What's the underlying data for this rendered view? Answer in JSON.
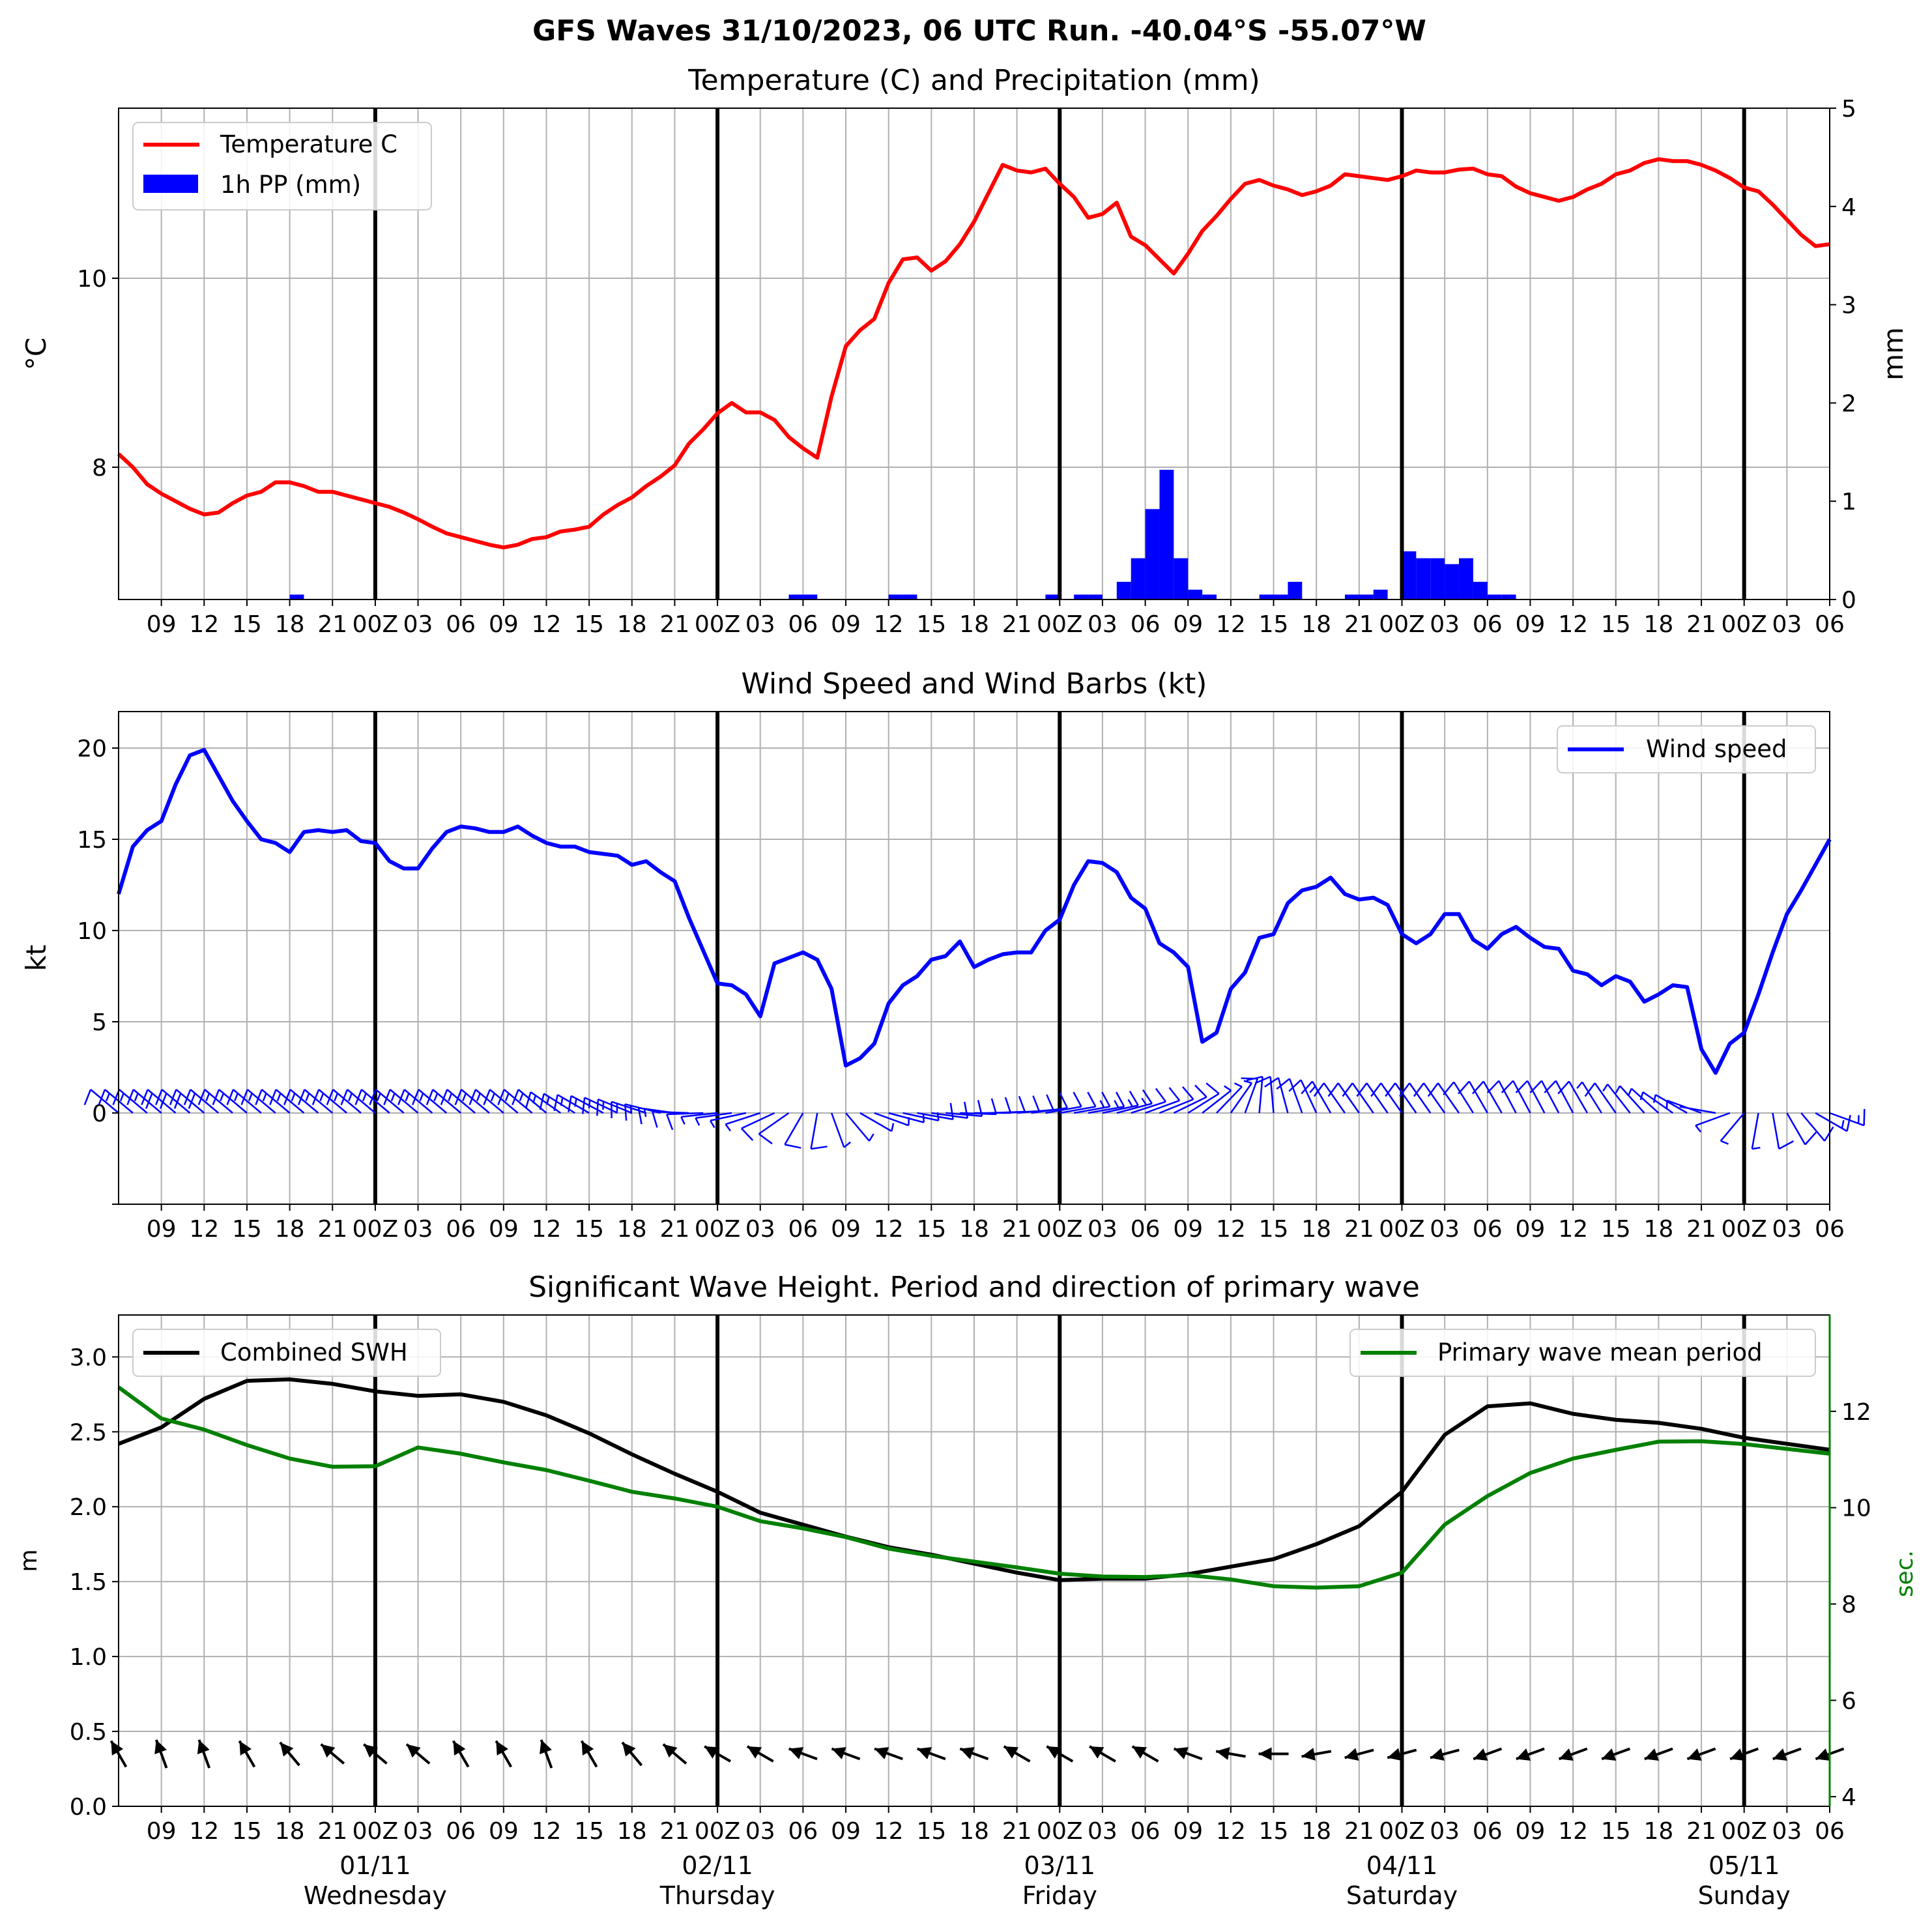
{
  "figure_title": "GFS Waves 31/10/2023, 06 UTC Run. -40.04°S -55.07°W",
  "x_tick_labels": [
    "09",
    "12",
    "15",
    "18",
    "21",
    "00Z",
    "03",
    "06",
    "09",
    "12",
    "15",
    "18",
    "21",
    "00Z",
    "03",
    "06",
    "09",
    "12",
    "15",
    "18",
    "21",
    "00Z",
    "03",
    "06",
    "09",
    "12",
    "15",
    "18",
    "21",
    "00Z",
    "03",
    "06",
    "09",
    "12",
    "15",
    "18",
    "21",
    "00Z",
    "03",
    "06"
  ],
  "chart_data": [
    {
      "type": "line",
      "title": "Temperature (C) and Precipitation (mm)",
      "ylabel": "$^\\circ$C",
      "ylabel_text": "°C",
      "y2label": "mm",
      "ylim": [
        6.6,
        11.8
      ],
      "y2lim": [
        0,
        5
      ],
      "yticks": [
        8,
        10
      ],
      "y2ticks": [
        0,
        1,
        2,
        3,
        4,
        5
      ],
      "x_hours": [
        0,
        120
      ],
      "legend": "upper left",
      "grid": true,
      "series": [
        {
          "name": "Temperature C",
          "color": "#ff0000",
          "x": [
            0,
            1,
            2,
            3,
            4,
            5,
            6,
            7,
            8,
            9,
            10,
            11,
            12,
            13,
            14,
            15,
            16,
            17,
            18,
            19,
            20,
            21,
            22,
            23,
            24,
            25,
            26,
            27,
            28,
            29,
            30,
            31,
            32,
            33,
            34,
            35,
            36,
            37,
            38,
            39,
            40,
            41,
            42,
            43,
            44,
            45,
            46,
            47,
            48,
            49,
            50,
            51,
            52,
            53,
            54,
            55,
            56,
            57,
            58,
            59,
            60,
            61,
            62,
            63,
            64,
            65,
            66,
            67,
            68,
            69,
            70,
            71,
            72,
            73,
            74,
            75,
            76,
            77,
            78,
            79,
            80,
            81,
            82,
            83,
            84,
            85,
            86,
            87,
            88,
            89,
            90,
            91,
            92,
            93,
            94,
            95,
            96,
            97,
            98,
            99,
            100,
            101,
            102,
            103,
            104,
            105,
            106,
            107,
            108,
            109,
            110,
            111,
            112,
            113,
            114,
            115,
            116,
            117,
            118,
            119,
            120
          ],
          "values": [
            8.14,
            8.0,
            7.82,
            7.72,
            7.64,
            7.56,
            7.5,
            7.52,
            7.62,
            7.7,
            7.74,
            7.84,
            7.84,
            7.8,
            7.74,
            7.74,
            7.7,
            7.66,
            7.62,
            7.58,
            7.52,
            7.45,
            7.37,
            7.3,
            7.26,
            7.22,
            7.18,
            7.15,
            7.18,
            7.24,
            7.26,
            7.32,
            7.34,
            7.37,
            7.5,
            7.6,
            7.68,
            7.8,
            7.9,
            8.02,
            8.25,
            8.4,
            8.57,
            8.68,
            8.58,
            8.58,
            8.5,
            8.32,
            8.2,
            8.1,
            8.75,
            9.28,
            9.45,
            9.57,
            9.95,
            10.2,
            10.22,
            10.08,
            10.18,
            10.36,
            10.6,
            10.9,
            11.2,
            11.14,
            11.12,
            11.16,
            11.0,
            10.86,
            10.64,
            10.68,
            10.8,
            10.44,
            10.35,
            10.2,
            10.05,
            10.26,
            10.5,
            10.66,
            10.84,
            11.0,
            11.04,
            10.98,
            10.94,
            10.88,
            10.92,
            10.98,
            11.1,
            11.08,
            11.06,
            11.04,
            11.08,
            11.14,
            11.12,
            11.12,
            11.15,
            11.16,
            11.1,
            11.08,
            10.97,
            10.9,
            10.86,
            10.82,
            10.86,
            10.94,
            11.0,
            11.1,
            11.14,
            11.22,
            11.26,
            11.24,
            11.24,
            11.2,
            11.14,
            11.06,
            10.96,
            10.92,
            10.78,
            10.62,
            10.46,
            10.34,
            10.36
          ]
        },
        {
          "name": "1h PP (mm)",
          "color": "#0000ff",
          "type": "bar",
          "x": [
            12,
            47,
            48,
            54,
            55,
            65,
            67,
            68,
            70,
            71,
            72,
            73,
            74,
            75,
            76,
            80,
            81,
            82,
            86,
            87,
            88,
            90,
            91,
            92,
            93,
            94,
            95,
            96,
            97
          ],
          "values": [
            0.05,
            0.05,
            0.05,
            0.05,
            0.05,
            0.05,
            0.05,
            0.05,
            0.18,
            0.42,
            0.92,
            1.32,
            0.42,
            0.1,
            0.05,
            0.05,
            0.05,
            0.18,
            0.05,
            0.05,
            0.1,
            0.49,
            0.42,
            0.42,
            0.36,
            0.42,
            0.18,
            0.05,
            0.05
          ]
        }
      ]
    },
    {
      "type": "line",
      "title": "Wind Speed and Wind Barbs (kt)",
      "ylabel": "kt",
      "ylim": [
        -5,
        22
      ],
      "yticks": [
        0,
        5,
        10,
        15,
        20
      ],
      "legend": "upper right",
      "grid": true,
      "series": [
        {
          "name": "Wind speed",
          "color": "#0000ff",
          "x": [
            0,
            1,
            2,
            3,
            4,
            5,
            6,
            7,
            8,
            9,
            10,
            11,
            12,
            13,
            14,
            15,
            16,
            17,
            18,
            19,
            20,
            21,
            22,
            23,
            24,
            25,
            26,
            27,
            28,
            29,
            30,
            31,
            32,
            33,
            34,
            35,
            36,
            37,
            38,
            39,
            40,
            41,
            42,
            43,
            44,
            45,
            46,
            47,
            48,
            49,
            50,
            51,
            52,
            53,
            54,
            55,
            56,
            57,
            58,
            59,
            60,
            61,
            62,
            63,
            64,
            65,
            66,
            67,
            68,
            69,
            70,
            71,
            72,
            73,
            74,
            75,
            76,
            77,
            78,
            79,
            80,
            81,
            82,
            83,
            84,
            85,
            86,
            87,
            88,
            89,
            90,
            91,
            92,
            93,
            94,
            95,
            96,
            97,
            98,
            99,
            100,
            101,
            102,
            103,
            104,
            105,
            106,
            107,
            108,
            109,
            110,
            111,
            112,
            113,
            114,
            115,
            116,
            117,
            118,
            119,
            120
          ],
          "values": [
            12.0,
            14.6,
            15.5,
            16.0,
            18.0,
            19.6,
            19.9,
            18.5,
            17.1,
            16.0,
            15.0,
            14.8,
            14.3,
            15.4,
            15.5,
            15.4,
            15.5,
            14.9,
            14.8,
            13.8,
            13.4,
            13.4,
            14.5,
            15.4,
            15.7,
            15.6,
            15.4,
            15.4,
            15.7,
            15.2,
            14.8,
            14.6,
            14.6,
            14.3,
            14.2,
            14.1,
            13.6,
            13.8,
            13.2,
            12.7,
            10.7,
            8.9,
            7.1,
            7.0,
            6.5,
            5.3,
            8.2,
            8.5,
            8.8,
            8.4,
            6.8,
            2.6,
            3.0,
            3.8,
            6.0,
            7.0,
            7.5,
            8.4,
            8.6,
            9.4,
            8.0,
            8.4,
            8.7,
            8.8,
            8.8,
            10.0,
            10.6,
            12.5,
            13.8,
            13.7,
            13.2,
            11.8,
            11.2,
            9.3,
            8.8,
            8.0,
            3.9,
            4.4,
            6.8,
            7.7,
            9.6,
            9.8,
            11.5,
            12.2,
            12.4,
            12.9,
            12.0,
            11.7,
            11.8,
            11.4,
            9.8,
            9.3,
            9.8,
            10.9,
            10.9,
            9.5,
            9.0,
            9.8,
            10.2,
            9.6,
            9.1,
            9.0,
            7.8,
            7.6,
            7.0,
            7.5,
            7.2,
            6.1,
            6.5,
            7.0,
            6.9,
            3.5,
            2.2,
            3.8,
            4.4,
            6.5,
            8.8,
            10.9,
            12.2,
            13.6,
            15.0
          ]
        }
      ],
      "barbs_dir_deg": [
        230,
        230,
        230,
        230,
        230,
        230,
        230,
        230,
        230,
        230,
        230,
        230,
        230,
        230,
        230,
        230,
        230,
        230,
        230,
        230,
        230,
        230,
        230,
        230,
        230,
        230,
        230,
        230,
        230,
        230,
        230,
        235,
        238,
        240,
        242,
        245,
        248,
        252,
        256,
        262,
        268,
        272,
        276,
        278,
        282,
        288,
        295,
        305,
        330,
        350,
        20,
        40,
        60,
        70,
        75,
        78,
        80,
        82,
        85,
        88,
        90,
        92,
        93,
        95,
        98,
        100,
        100,
        100,
        100,
        102,
        105,
        108,
        110,
        112,
        116,
        122,
        128,
        136,
        145,
        160,
        175,
        185,
        195,
        200,
        205,
        210,
        215,
        215,
        215,
        215,
        215,
        215,
        215,
        215,
        215,
        212,
        210,
        210,
        208,
        208,
        208,
        208,
        208,
        210,
        212,
        215,
        218,
        222,
        228,
        235,
        240,
        250,
        260,
        290,
        320,
        350,
        10,
        30,
        40,
        60,
        70
      ]
    },
    {
      "type": "line",
      "title": "Significant Wave Height. Period and direction of primary wave",
      "ylabel": "m",
      "y2label": "sec.",
      "ylim": [
        0,
        3.28
      ],
      "y2lim": [
        3.8,
        14.0
      ],
      "yticks": [
        0.0,
        0.5,
        1.0,
        1.5,
        2.0,
        2.5,
        3.0
      ],
      "y2ticks": [
        4,
        6,
        8,
        10,
        12
      ],
      "y2color": "#008000",
      "grid": true,
      "legend_left": "upper left",
      "legend_right": "upper right",
      "series": [
        {
          "name": "Combined SWH",
          "color": "#000000",
          "axis": "left",
          "x": [
            0,
            3,
            6,
            9,
            12,
            15,
            18,
            21,
            24,
            27,
            30,
            33,
            36,
            39,
            42,
            45,
            48,
            51,
            54,
            57,
            60,
            63,
            66,
            69,
            72,
            75,
            78,
            81,
            84,
            87,
            90,
            93,
            96,
            99,
            102,
            105,
            108,
            111,
            114,
            117,
            120
          ],
          "values": [
            2.42,
            2.53,
            2.72,
            2.84,
            2.85,
            2.82,
            2.77,
            2.74,
            2.75,
            2.7,
            2.61,
            2.49,
            2.35,
            2.22,
            2.1,
            1.96,
            1.88,
            1.8,
            1.73,
            1.68,
            1.62,
            1.56,
            1.51,
            1.52,
            1.52,
            1.55,
            1.6,
            1.65,
            1.75,
            1.87,
            2.1,
            2.48,
            2.67,
            2.69,
            2.62,
            2.58,
            2.56,
            2.52,
            2.46,
            2.42,
            2.38
          ]
        },
        {
          "name": "Primary wave mean period",
          "color": "#008000",
          "axis": "right",
          "x": [
            0,
            3,
            6,
            9,
            12,
            15,
            18,
            21,
            24,
            27,
            30,
            33,
            36,
            39,
            42,
            45,
            48,
            51,
            54,
            57,
            60,
            63,
            66,
            69,
            72,
            75,
            78,
            81,
            84,
            87,
            90,
            93,
            96,
            99,
            102,
            105,
            108,
            111,
            114,
            117,
            120
          ],
          "values": [
            12.5,
            11.85,
            11.62,
            11.3,
            11.02,
            10.85,
            10.86,
            11.25,
            11.12,
            10.94,
            10.78,
            10.56,
            10.33,
            10.19,
            10.02,
            9.72,
            9.57,
            9.39,
            9.15,
            9.0,
            8.88,
            8.76,
            8.63,
            8.57,
            8.56,
            8.6,
            8.51,
            8.37,
            8.34,
            8.37,
            8.65,
            9.65,
            10.24,
            10.72,
            11.02,
            11.2,
            11.37,
            11.38,
            11.32,
            11.22,
            11.12
          ]
        }
      ],
      "arrows_dir_deg": [
        150,
        160,
        160,
        150,
        140,
        130,
        130,
        130,
        150,
        150,
        160,
        150,
        140,
        130,
        120,
        120,
        110,
        110,
        110,
        110,
        110,
        120,
        120,
        120,
        120,
        110,
        100,
        90,
        80,
        75,
        75,
        75,
        70,
        70,
        70,
        70,
        70,
        70,
        70,
        70,
        70
      ],
      "arrow_hours": [
        0,
        3,
        6,
        9,
        12,
        15,
        18,
        21,
        24,
        27,
        30,
        33,
        36,
        39,
        42,
        45,
        48,
        51,
        54,
        57,
        60,
        63,
        66,
        69,
        72,
        75,
        78,
        81,
        84,
        87,
        90,
        93,
        96,
        99,
        102,
        105,
        108,
        111,
        114,
        117,
        120
      ]
    }
  ],
  "day_labels": [
    {
      "date": "01/11",
      "day": "Wednesday"
    },
    {
      "date": "02/11",
      "day": "Thursday"
    },
    {
      "date": "03/11",
      "day": "Friday"
    },
    {
      "date": "04/11",
      "day": "Saturday"
    },
    {
      "date": "05/11",
      "day": "Sunday"
    }
  ]
}
